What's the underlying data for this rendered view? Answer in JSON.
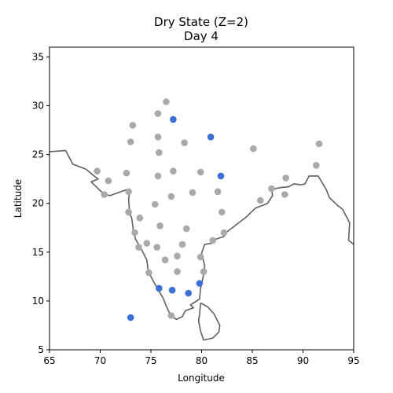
{
  "chart_data": {
    "type": "scatter",
    "title": "Dry State (Z=2)",
    "subtitle": "Day 4",
    "xlabel": "Longitude",
    "ylabel": "Latitude",
    "xlim": [
      65,
      95
    ],
    "ylim": [
      5,
      36
    ],
    "xticks": [
      65,
      70,
      75,
      80,
      85,
      90,
      95
    ],
    "yticks": [
      5,
      10,
      15,
      20,
      25,
      30,
      35
    ],
    "grid": false,
    "colors": {
      "inactive": "#a9a9a9",
      "active": "#3b6fd6",
      "coastline": "#5f5f5f"
    },
    "series": [
      {
        "values": [
          [
            76.5,
            30.4
          ],
          [
            75.7,
            29.2
          ],
          [
            73.2,
            28.0
          ],
          [
            73.0,
            26.3
          ],
          [
            75.7,
            26.8
          ],
          [
            78.3,
            26.2
          ],
          [
            75.8,
            25.2
          ],
          [
            85.1,
            25.6
          ],
          [
            91.6,
            26.1
          ],
          [
            69.7,
            23.3
          ],
          [
            72.6,
            23.1
          ],
          [
            70.8,
            22.3
          ],
          [
            75.7,
            22.8
          ],
          [
            77.2,
            23.3
          ],
          [
            79.9,
            23.2
          ],
          [
            88.3,
            22.6
          ],
          [
            91.3,
            23.9
          ],
          [
            70.4,
            20.9
          ],
          [
            72.8,
            21.2
          ],
          [
            77.0,
            20.7
          ],
          [
            79.1,
            21.1
          ],
          [
            81.6,
            21.2
          ],
          [
            86.9,
            21.5
          ],
          [
            88.2,
            20.9
          ],
          [
            85.8,
            20.3
          ],
          [
            75.4,
            19.9
          ],
          [
            72.8,
            19.1
          ],
          [
            73.9,
            18.5
          ],
          [
            82.0,
            19.1
          ],
          [
            75.9,
            17.7
          ],
          [
            78.5,
            17.4
          ],
          [
            73.4,
            17.0
          ],
          [
            82.2,
            17.0
          ],
          [
            81.1,
            16.2
          ],
          [
            73.8,
            15.5
          ],
          [
            74.6,
            15.9
          ],
          [
            75.6,
            15.5
          ],
          [
            78.1,
            15.8
          ],
          [
            76.4,
            14.2
          ],
          [
            77.6,
            14.6
          ],
          [
            79.9,
            14.5
          ],
          [
            74.8,
            12.9
          ],
          [
            77.6,
            13.0
          ],
          [
            80.2,
            13.0
          ],
          [
            77.0,
            8.5
          ]
        ]
      },
      {
        "values": [
          [
            77.2,
            28.6
          ],
          [
            80.9,
            26.8
          ],
          [
            81.9,
            22.8
          ],
          [
            79.8,
            11.8
          ],
          [
            75.8,
            11.3
          ],
          [
            77.1,
            11.1
          ],
          [
            78.7,
            10.8
          ],
          [
            73.0,
            8.3
          ]
        ]
      }
    ],
    "coastline": [
      [
        [
          65.0,
          25.3
        ],
        [
          66.6,
          25.4
        ],
        [
          67.3,
          24.0
        ],
        [
          67.6,
          23.9
        ],
        [
          68.6,
          23.5
        ],
        [
          69.3,
          22.9
        ],
        [
          69.8,
          22.5
        ],
        [
          69.1,
          22.2
        ],
        [
          70.4,
          20.9
        ],
        [
          71.0,
          20.8
        ],
        [
          72.6,
          21.4
        ],
        [
          72.9,
          21.1
        ],
        [
          72.8,
          20.5
        ],
        [
          72.9,
          19.0
        ],
        [
          73.1,
          18.5
        ],
        [
          73.3,
          17.0
        ],
        [
          73.5,
          16.3
        ],
        [
          73.9,
          15.6
        ],
        [
          74.2,
          15.0
        ],
        [
          74.6,
          14.2
        ],
        [
          74.7,
          13.3
        ],
        [
          74.8,
          12.9
        ],
        [
          75.3,
          11.9
        ],
        [
          75.8,
          11.0
        ],
        [
          76.2,
          10.3
        ],
        [
          76.5,
          9.5
        ],
        [
          76.9,
          8.6
        ],
        [
          77.5,
          8.1
        ],
        [
          78.1,
          8.4
        ],
        [
          78.4,
          9.0
        ],
        [
          79.2,
          9.3
        ],
        [
          78.9,
          9.6
        ],
        [
          79.8,
          10.2
        ],
        [
          79.9,
          11.3
        ],
        [
          80.2,
          12.7
        ],
        [
          80.3,
          13.6
        ],
        [
          80.0,
          14.9
        ],
        [
          80.3,
          15.8
        ],
        [
          81.0,
          15.9
        ],
        [
          81.3,
          16.3
        ],
        [
          82.2,
          16.6
        ],
        [
          82.4,
          17.0
        ],
        [
          83.4,
          17.8
        ],
        [
          84.4,
          18.6
        ],
        [
          85.3,
          19.5
        ],
        [
          86.5,
          20.0
        ],
        [
          87.0,
          20.8
        ],
        [
          86.9,
          21.4
        ],
        [
          87.7,
          21.6
        ],
        [
          88.6,
          21.7
        ],
        [
          89.1,
          22.0
        ],
        [
          89.8,
          21.9
        ],
        [
          90.2,
          22.0
        ],
        [
          90.6,
          22.8
        ],
        [
          91.5,
          22.8
        ],
        [
          91.9,
          22.1
        ],
        [
          92.3,
          21.4
        ],
        [
          92.6,
          20.6
        ],
        [
          93.4,
          19.8
        ],
        [
          93.9,
          19.4
        ],
        [
          94.2,
          18.8
        ],
        [
          94.6,
          18.0
        ],
        [
          94.5,
          16.2
        ],
        [
          95.0,
          15.8
        ]
      ],
      [
        [
          79.9,
          9.8
        ],
        [
          80.6,
          9.4
        ],
        [
          81.2,
          8.7
        ],
        [
          81.8,
          7.5
        ],
        [
          81.7,
          6.8
        ],
        [
          81.1,
          6.2
        ],
        [
          80.2,
          6.0
        ],
        [
          79.9,
          6.9
        ],
        [
          79.7,
          8.0
        ],
        [
          79.8,
          8.6
        ],
        [
          79.9,
          9.8
        ]
      ]
    ]
  }
}
